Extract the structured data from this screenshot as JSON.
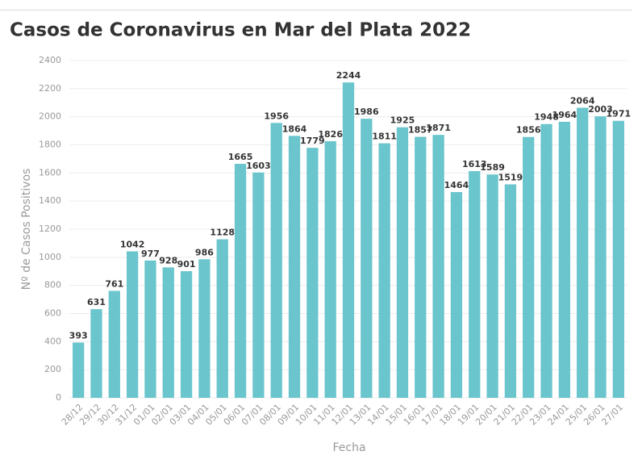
{
  "chart_data": {
    "type": "bar",
    "title": "Casos de Coronavirus en Mar del Plata 2022",
    "x_label": "Fecha",
    "y_label": "Nº de Casos Positivos",
    "categories": [
      "28/12",
      "29/12",
      "30/12",
      "31/12",
      "01/01",
      "02/01",
      "03/01",
      "04/01",
      "05/01",
      "06/01",
      "07/01",
      "08/01",
      "09/01",
      "10/01",
      "11/01",
      "12/01",
      "13/01",
      "14/01",
      "15/01",
      "16/01",
      "17/01",
      "18/01",
      "19/01",
      "20/01",
      "21/01",
      "22/01",
      "23/01",
      "24/01",
      "25/01",
      "26/01",
      "27/01"
    ],
    "values": [
      393,
      631,
      761,
      1042,
      977,
      928,
      901,
      986,
      1128,
      1665,
      1603,
      1956,
      1864,
      1779,
      1826,
      2244,
      1986,
      1811,
      1925,
      1857,
      1871,
      1464,
      1613,
      1589,
      1519,
      1856,
      1948,
      1964,
      2064,
      2003,
      1971
    ],
    "color": "#6ac5cc",
    "ylim": [
      0,
      2400
    ],
    "yticks": [
      0,
      200,
      400,
      600,
      800,
      1000,
      1200,
      1400,
      1600,
      1800,
      2000,
      2200,
      2400
    ],
    "grid": true
  }
}
